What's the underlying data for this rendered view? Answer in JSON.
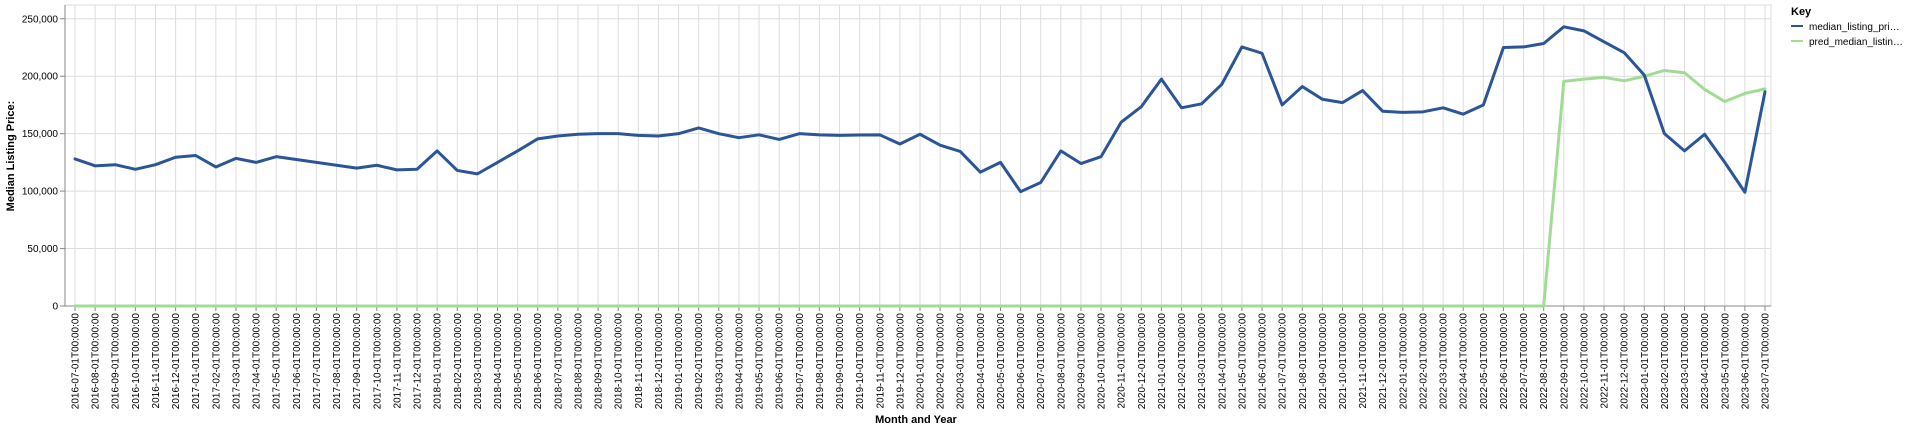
{
  "chart_data": {
    "type": "line",
    "title": "",
    "xlabel": "Month and Year",
    "ylabel": "Median Listing Price:",
    "ylim": [
      0,
      262000
    ],
    "yticks": [
      0,
      50000,
      100000,
      150000,
      200000,
      250000
    ],
    "ytick_labels": [
      "0",
      "50,000",
      "100,000",
      "150,000",
      "200,000",
      "250,000"
    ],
    "grid": true,
    "legend": {
      "title": "Key",
      "placement": "right",
      "entries": [
        "median_listing_pri…",
        "pred_median_listin…"
      ]
    },
    "x": [
      "2016-07-01T00:00:00",
      "2016-08-01T00:00:00",
      "2016-09-01T00:00:00",
      "2016-10-01T00:00:00",
      "2016-11-01T00:00:00",
      "2016-12-01T00:00:00",
      "2017-01-01T00:00:00",
      "2017-02-01T00:00:00",
      "2017-03-01T00:00:00",
      "2017-04-01T00:00:00",
      "2017-05-01T00:00:00",
      "2017-06-01T00:00:00",
      "2017-07-01T00:00:00",
      "2017-08-01T00:00:00",
      "2017-09-01T00:00:00",
      "2017-10-01T00:00:00",
      "2017-11-01T00:00:00",
      "2017-12-01T00:00:00",
      "2018-01-01T00:00:00",
      "2018-02-01T00:00:00",
      "2018-03-01T00:00:00",
      "2018-04-01T00:00:00",
      "2018-05-01T00:00:00",
      "2018-06-01T00:00:00",
      "2018-07-01T00:00:00",
      "2018-08-01T00:00:00",
      "2018-09-01T00:00:00",
      "2018-10-01T00:00:00",
      "2018-11-01T00:00:00",
      "2018-12-01T00:00:00",
      "2019-01-01T00:00:00",
      "2019-02-01T00:00:00",
      "2019-03-01T00:00:00",
      "2019-04-01T00:00:00",
      "2019-05-01T00:00:00",
      "2019-06-01T00:00:00",
      "2019-07-01T00:00:00",
      "2019-08-01T00:00:00",
      "2019-09-01T00:00:00",
      "2019-10-01T00:00:00",
      "2019-11-01T00:00:00",
      "2019-12-01T00:00:00",
      "2020-01-01T00:00:00",
      "2020-02-01T00:00:00",
      "2020-03-01T00:00:00",
      "2020-04-01T00:00:00",
      "2020-05-01T00:00:00",
      "2020-06-01T00:00:00",
      "2020-07-01T00:00:00",
      "2020-08-01T00:00:00",
      "2020-09-01T00:00:00",
      "2020-10-01T00:00:00",
      "2020-11-01T00:00:00",
      "2020-12-01T00:00:00",
      "2021-01-01T00:00:00",
      "2021-02-01T00:00:00",
      "2021-03-01T00:00:00",
      "2021-04-01T00:00:00",
      "2021-05-01T00:00:00",
      "2021-06-01T00:00:00",
      "2021-07-01T00:00:00",
      "2021-08-01T00:00:00",
      "2021-09-01T00:00:00",
      "2021-10-01T00:00:00",
      "2021-11-01T00:00:00",
      "2021-12-01T00:00:00",
      "2022-01-01T00:00:00",
      "2022-02-01T00:00:00",
      "2022-03-01T00:00:00",
      "2022-04-01T00:00:00",
      "2022-05-01T00:00:00",
      "2022-06-01T00:00:00",
      "2022-07-01T00:00:00",
      "2022-08-01T00:00:00",
      "2022-09-01T00:00:00",
      "2022-10-01T00:00:00",
      "2022-11-01T00:00:00",
      "2022-12-01T00:00:00",
      "2023-01-01T00:00:00",
      "2023-02-01T00:00:00",
      "2023-03-01T00:00:00",
      "2023-04-01T00:00:00",
      "2023-05-01T00:00:00",
      "2023-06-01T00:00:00",
      "2023-07-01T00:00:00"
    ],
    "series": [
      {
        "name": "median_listing_pri…",
        "color": "#2b5597",
        "values": [
          128000,
          122000,
          123000,
          119000,
          123000,
          129500,
          131000,
          121000,
          128500,
          125000,
          130000,
          127500,
          125000,
          122500,
          120000,
          122500,
          118500,
          119000,
          135000,
          118000,
          115000,
          125000,
          135000,
          145500,
          148000,
          149500,
          150000,
          150000,
          148500,
          148000,
          150000,
          155000,
          150000,
          146500,
          149000,
          145000,
          150000,
          149000,
          148500,
          148800,
          149000,
          141000,
          149500,
          140000,
          134500,
          116500,
          125000,
          99500,
          107500,
          135000,
          124000,
          130000,
          160000,
          173500,
          197500,
          172500,
          176000,
          193000,
          225500,
          220000,
          175000,
          191000,
          180000,
          177000,
          187500,
          169500,
          168500,
          169000,
          172500,
          167000,
          175000,
          225000,
          225500,
          228500,
          243000,
          239500,
          230000,
          220500,
          201000,
          150000,
          135000,
          149500,
          125000,
          99000,
          186500
        ]
      },
      {
        "name": "pred_median_listin…",
        "color": "#a2dc94",
        "values": [
          0,
          0,
          0,
          0,
          0,
          0,
          0,
          0,
          0,
          0,
          0,
          0,
          0,
          0,
          0,
          0,
          0,
          0,
          0,
          0,
          0,
          0,
          0,
          0,
          0,
          0,
          0,
          0,
          0,
          0,
          0,
          0,
          0,
          0,
          0,
          0,
          0,
          0,
          0,
          0,
          0,
          0,
          0,
          0,
          0,
          0,
          0,
          0,
          0,
          0,
          0,
          0,
          0,
          0,
          0,
          0,
          0,
          0,
          0,
          0,
          0,
          0,
          0,
          0,
          0,
          0,
          0,
          0,
          0,
          0,
          0,
          0,
          0,
          0,
          195500,
          197500,
          199000,
          196000,
          200000,
          205000,
          203000,
          188500,
          178000,
          185000,
          189000
        ]
      }
    ]
  }
}
